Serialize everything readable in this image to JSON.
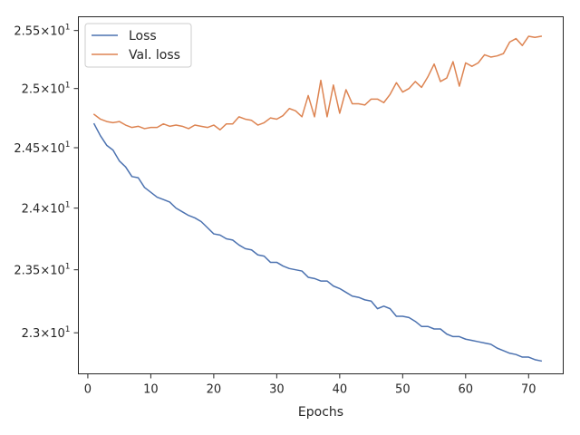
{
  "chart_data": {
    "type": "line",
    "title": "",
    "xlabel": "Epochs",
    "ylabel": "",
    "xlim": [
      -1.5,
      75.5
    ],
    "ylim": [
      22.68,
      25.62
    ],
    "yscale": "log",
    "grid": false,
    "legend_position": "upper-left",
    "x_ticks": [
      0,
      10,
      20,
      30,
      40,
      50,
      60,
      70
    ],
    "x_tick_labels": [
      "0",
      "10",
      "20",
      "30",
      "40",
      "50",
      "60",
      "70"
    ],
    "y_ticks": [
      {
        "value": 23.0,
        "mantissa": "2.3"
      },
      {
        "value": 23.5,
        "mantissa": "2.35"
      },
      {
        "value": 24.0,
        "mantissa": "2.4"
      },
      {
        "value": 24.5,
        "mantissa": "2.45"
      },
      {
        "value": 25.0,
        "mantissa": "2.5"
      },
      {
        "value": 25.5,
        "mantissa": "2.55"
      }
    ],
    "y_tick_exponent": "1",
    "x": [
      1,
      2,
      3,
      4,
      5,
      6,
      7,
      8,
      9,
      10,
      11,
      12,
      13,
      14,
      15,
      16,
      17,
      18,
      19,
      20,
      21,
      22,
      23,
      24,
      25,
      26,
      27,
      28,
      29,
      30,
      31,
      32,
      33,
      34,
      35,
      36,
      37,
      38,
      39,
      40,
      41,
      42,
      43,
      44,
      45,
      46,
      47,
      48,
      49,
      50,
      51,
      52,
      53,
      54,
      55,
      56,
      57,
      58,
      59,
      60,
      61,
      62,
      63,
      64,
      65,
      66,
      67,
      68,
      69,
      70,
      71,
      72
    ],
    "series": [
      {
        "name": "Loss",
        "color": "#4c72b0",
        "values": [
          24.7,
          24.6,
          24.52,
          24.48,
          24.39,
          24.34,
          24.26,
          24.25,
          24.17,
          24.13,
          24.09,
          24.07,
          24.05,
          24.0,
          23.97,
          23.94,
          23.92,
          23.89,
          23.84,
          23.79,
          23.78,
          23.75,
          23.74,
          23.7,
          23.67,
          23.66,
          23.62,
          23.61,
          23.56,
          23.56,
          23.53,
          23.51,
          23.5,
          23.49,
          23.44,
          23.43,
          23.41,
          23.41,
          23.37,
          23.35,
          23.32,
          23.29,
          23.28,
          23.26,
          23.25,
          23.19,
          23.21,
          23.19,
          23.13,
          23.13,
          23.12,
          23.09,
          23.05,
          23.05,
          23.03,
          23.03,
          22.99,
          22.97,
          22.97,
          22.95,
          22.94,
          22.93,
          22.92,
          22.91,
          22.88,
          22.86,
          22.84,
          22.83,
          22.81,
          22.81,
          22.79,
          22.78
        ]
      },
      {
        "name": "Val. loss",
        "color": "#dd8452",
        "values": [
          24.78,
          24.74,
          24.72,
          24.71,
          24.72,
          24.69,
          24.67,
          24.68,
          24.66,
          24.67,
          24.67,
          24.7,
          24.68,
          24.69,
          24.68,
          24.66,
          24.69,
          24.68,
          24.67,
          24.69,
          24.65,
          24.7,
          24.7,
          24.76,
          24.74,
          24.73,
          24.69,
          24.71,
          24.75,
          24.74,
          24.77,
          24.83,
          24.81,
          24.76,
          24.94,
          24.76,
          25.07,
          24.76,
          25.03,
          24.79,
          24.99,
          24.87,
          24.87,
          24.86,
          24.91,
          24.91,
          24.88,
          24.95,
          25.05,
          24.97,
          25.0,
          25.06,
          25.01,
          25.1,
          25.21,
          25.06,
          25.09,
          25.23,
          25.02,
          25.22,
          25.19,
          25.22,
          25.29,
          25.27,
          25.28,
          25.3,
          25.4,
          25.43,
          25.37,
          25.45,
          25.44,
          25.45
        ]
      }
    ]
  }
}
